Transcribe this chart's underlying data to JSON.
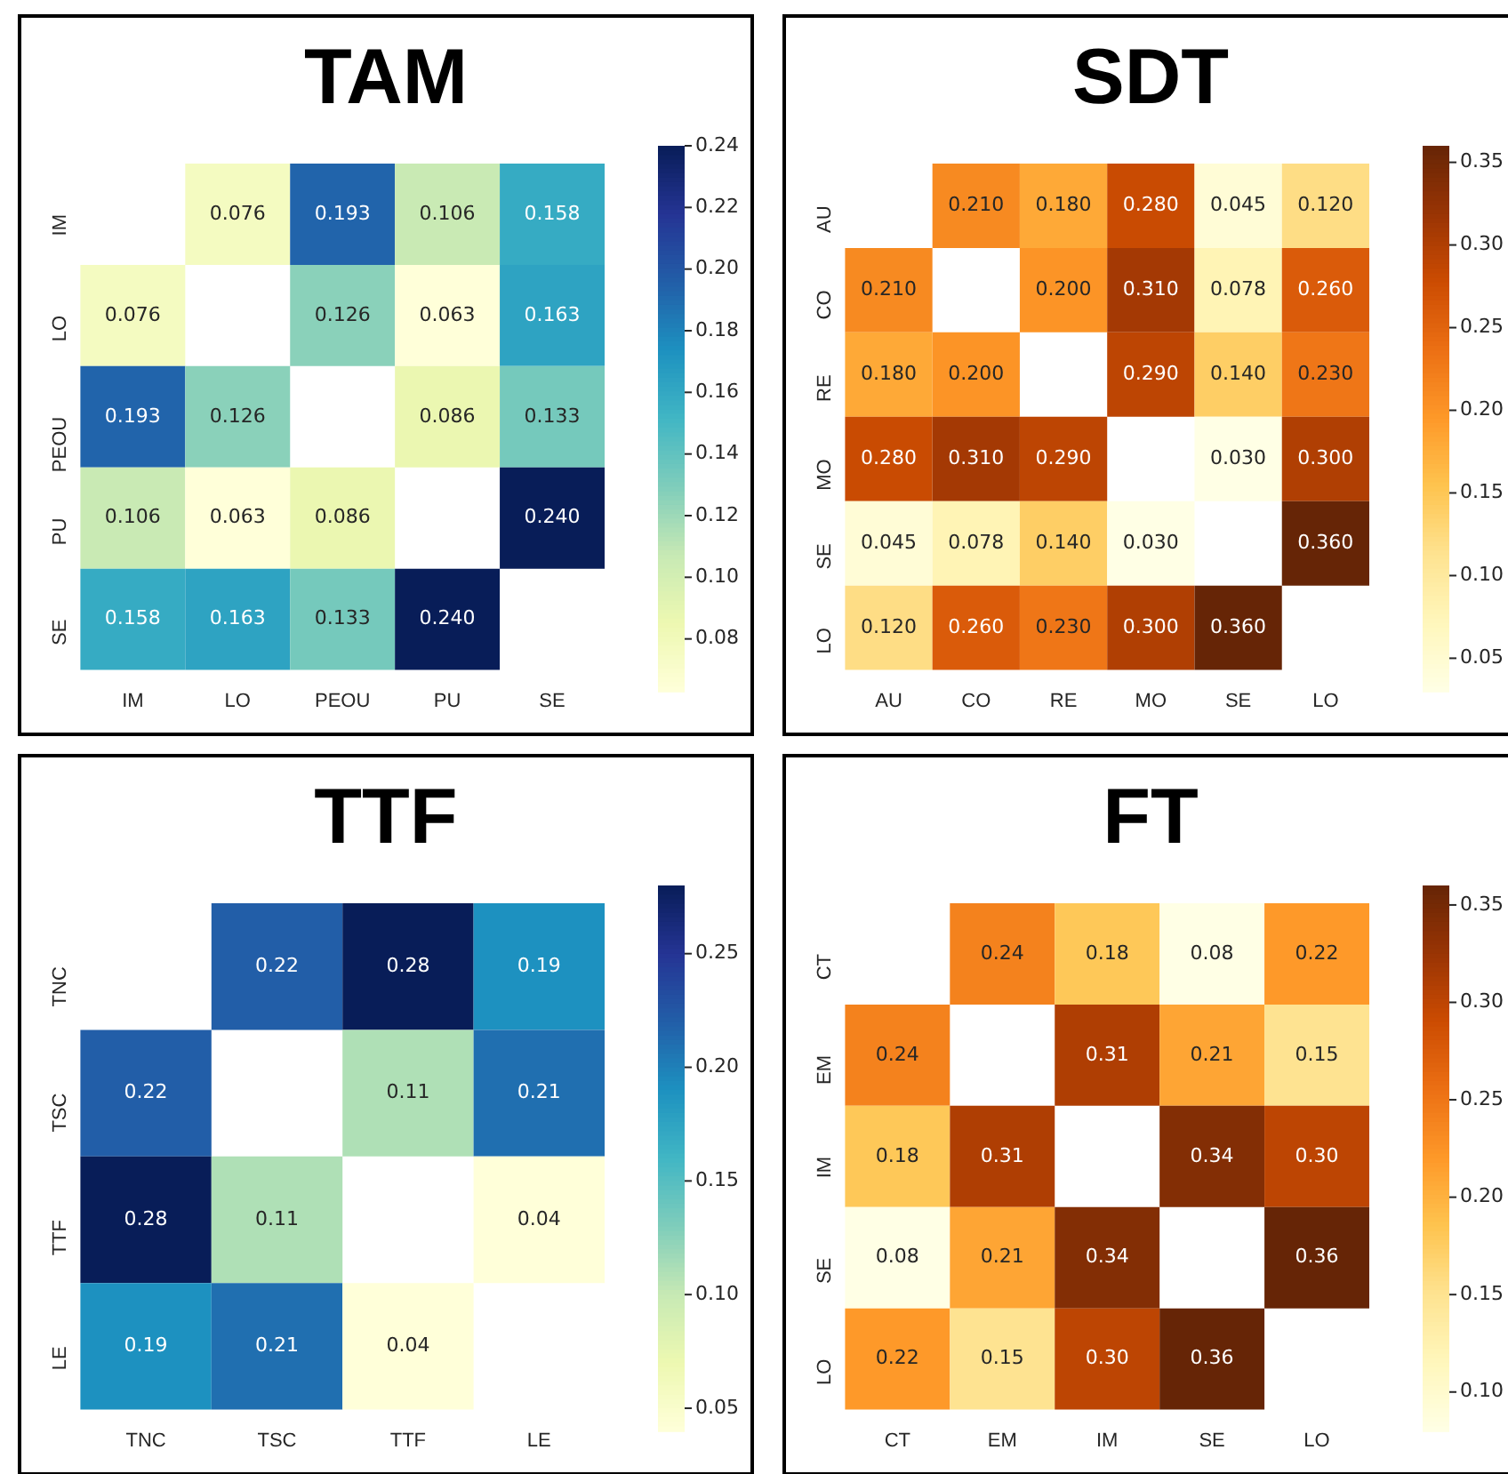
{
  "chart_data": [
    {
      "type": "heatmap",
      "title": "TAM",
      "categories": [
        "IM",
        "LO",
        "PEOU",
        "PU",
        "SE"
      ],
      "y_categories": [
        "IM",
        "LO",
        "PEOU",
        "PU",
        "SE"
      ],
      "cells": [
        [
          null,
          0.076,
          0.193,
          0.106,
          0.158
        ],
        [
          0.076,
          null,
          0.126,
          0.063,
          0.163
        ],
        [
          0.193,
          0.126,
          null,
          0.086,
          0.133
        ],
        [
          0.106,
          0.063,
          0.086,
          null,
          0.24
        ],
        [
          0.158,
          0.163,
          0.133,
          0.24,
          null
        ]
      ],
      "cell_labels": [
        [
          null,
          "0.076",
          "0.193",
          "0.106",
          "0.158"
        ],
        [
          "0.076",
          null,
          "0.126",
          "0.063",
          "0.163"
        ],
        [
          "0.193",
          "0.126",
          null,
          "0.086",
          "0.133"
        ],
        [
          "0.106",
          "0.063",
          "0.086",
          null,
          "0.240"
        ],
        [
          "0.158",
          "0.163",
          "0.133",
          "0.240",
          null
        ]
      ],
      "clim": [
        0.063,
        0.24
      ],
      "cticks": [
        {
          "value": 0.08,
          "label": "0.08"
        },
        {
          "value": 0.1,
          "label": "0.10"
        },
        {
          "value": 0.12,
          "label": "0.12"
        },
        {
          "value": 0.14,
          "label": "0.14"
        },
        {
          "value": 0.16,
          "label": "0.16"
        },
        {
          "value": 0.18,
          "label": "0.18"
        },
        {
          "value": 0.2,
          "label": "0.20"
        },
        {
          "value": 0.22,
          "label": "0.22"
        },
        {
          "value": 0.24,
          "label": "0.24"
        }
      ]
    },
    {
      "type": "heatmap",
      "title": "SDT",
      "categories": [
        "AU",
        "CO",
        "RE",
        "MO",
        "SE",
        "LO"
      ],
      "y_categories": [
        "AU",
        "CO",
        "RE",
        "MO",
        "SE",
        "LO"
      ],
      "cells": [
        [
          null,
          0.21,
          0.18,
          0.28,
          0.045,
          0.12
        ],
        [
          0.21,
          null,
          0.2,
          0.31,
          0.078,
          0.26
        ],
        [
          0.18,
          0.2,
          null,
          0.29,
          0.14,
          0.23
        ],
        [
          0.28,
          0.31,
          0.29,
          null,
          0.03,
          0.3
        ],
        [
          0.045,
          0.078,
          0.14,
          0.03,
          null,
          0.36
        ],
        [
          0.12,
          0.26,
          0.23,
          0.3,
          0.36,
          null
        ]
      ],
      "cell_labels": [
        [
          null,
          "0.210",
          "0.180",
          "0.280",
          "0.045",
          "0.120"
        ],
        [
          "0.210",
          null,
          "0.200",
          "0.310",
          "0.078",
          "0.260"
        ],
        [
          "0.180",
          "0.200",
          null,
          "0.290",
          "0.140",
          "0.230"
        ],
        [
          "0.280",
          "0.310",
          "0.290",
          null,
          "0.030",
          "0.300"
        ],
        [
          "0.045",
          "0.078",
          "0.140",
          "0.030",
          null,
          "0.360"
        ],
        [
          "0.120",
          "0.260",
          "0.230",
          "0.300",
          "0.360",
          null
        ]
      ],
      "clim": [
        0.03,
        0.36
      ],
      "cticks": [
        {
          "value": 0.05,
          "label": "0.05"
        },
        {
          "value": 0.1,
          "label": "0.10"
        },
        {
          "value": 0.15,
          "label": "0.15"
        },
        {
          "value": 0.2,
          "label": "0.20"
        },
        {
          "value": 0.25,
          "label": "0.25"
        },
        {
          "value": 0.3,
          "label": "0.30"
        },
        {
          "value": 0.35,
          "label": "0.35"
        }
      ]
    },
    {
      "type": "heatmap",
      "title": "TTF",
      "categories": [
        "TNC",
        "TSC",
        "TTF",
        "LE"
      ],
      "y_categories": [
        "TNC",
        "TSC",
        "TTF",
        "LE"
      ],
      "cells": [
        [
          null,
          0.22,
          0.28,
          0.19
        ],
        [
          0.22,
          null,
          0.11,
          0.21
        ],
        [
          0.28,
          0.11,
          null,
          0.04
        ],
        [
          0.19,
          0.21,
          0.04,
          null
        ]
      ],
      "cell_labels": [
        [
          null,
          "0.22",
          "0.28",
          "0.19"
        ],
        [
          "0.22",
          null,
          "0.11",
          "0.21"
        ],
        [
          "0.28",
          "0.11",
          null,
          "0.04"
        ],
        [
          "0.19",
          "0.21",
          "0.04",
          null
        ]
      ],
      "clim": [
        0.04,
        0.28
      ],
      "cticks": [
        {
          "value": 0.05,
          "label": "0.05"
        },
        {
          "value": 0.1,
          "label": "0.10"
        },
        {
          "value": 0.15,
          "label": "0.15"
        },
        {
          "value": 0.2,
          "label": "0.20"
        },
        {
          "value": 0.25,
          "label": "0.25"
        }
      ]
    },
    {
      "type": "heatmap",
      "title": "FT",
      "categories": [
        "CT",
        "EM",
        "IM",
        "SE",
        "LO"
      ],
      "y_categories": [
        "CT",
        "EM",
        "IM",
        "SE",
        "LO"
      ],
      "cells": [
        [
          null,
          0.24,
          0.18,
          0.08,
          0.22
        ],
        [
          0.24,
          null,
          0.31,
          0.21,
          0.15
        ],
        [
          0.18,
          0.31,
          null,
          0.34,
          0.3
        ],
        [
          0.08,
          0.21,
          0.34,
          null,
          0.36
        ],
        [
          0.22,
          0.15,
          0.3,
          0.36,
          null
        ]
      ],
      "cell_labels": [
        [
          null,
          "0.24",
          "0.18",
          "0.08",
          "0.22"
        ],
        [
          "0.24",
          null,
          "0.31",
          "0.21",
          "0.15"
        ],
        [
          "0.18",
          "0.31",
          null,
          "0.34",
          "0.30"
        ],
        [
          "0.08",
          "0.21",
          "0.34",
          null,
          "0.36"
        ],
        [
          "0.22",
          "0.15",
          "0.30",
          "0.36",
          null
        ]
      ],
      "clim": [
        0.08,
        0.36
      ],
      "cticks": [
        {
          "value": 0.1,
          "label": "0.10"
        },
        {
          "value": 0.15,
          "label": "0.15"
        },
        {
          "value": 0.2,
          "label": "0.20"
        },
        {
          "value": 0.25,
          "label": "0.25"
        },
        {
          "value": 0.3,
          "label": "0.30"
        },
        {
          "value": 0.35,
          "label": "0.35"
        }
      ]
    }
  ]
}
